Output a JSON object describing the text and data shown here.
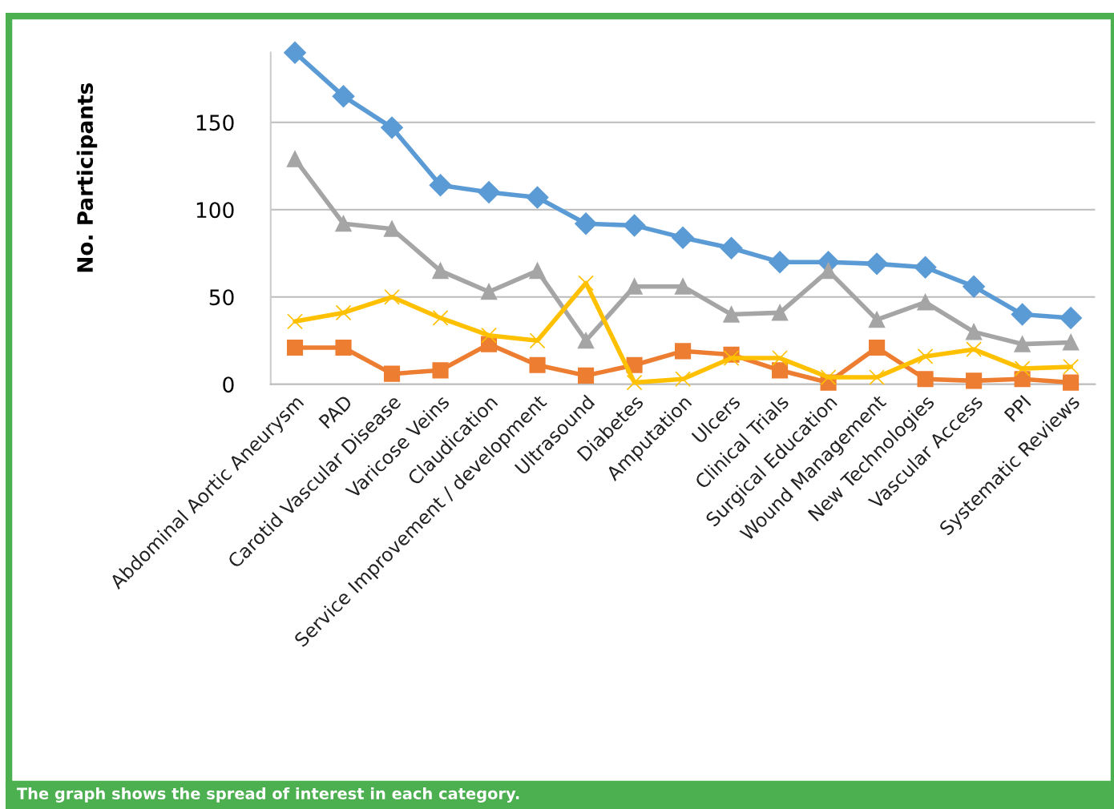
{
  "chart_data": {
    "type": "line",
    "ylabel": "No. Participants",
    "categories": [
      "Abdominal Aortic Aneurysm",
      "PAD",
      "Carotid Vascular Disease",
      "Varicose Veins",
      "Claudication",
      "Service Improvement / development",
      "Ultrasound",
      "Diabetes",
      "Amputation",
      "Ulcers",
      "Clinical Trials",
      "Surgical Education",
      "Wound Management",
      "New Technologies",
      "Vascular Access",
      "PPI",
      "Systematic Reviews"
    ],
    "series": [
      {
        "color": "#5b9bd5",
        "marker": "diamond",
        "values": [
          190,
          165,
          147,
          114,
          110,
          107,
          92,
          91,
          84,
          78,
          70,
          70,
          69,
          67,
          56,
          40,
          38
        ]
      },
      {
        "color": "#a5a5a5",
        "marker": "triangle",
        "values": [
          129,
          92,
          89,
          65,
          53,
          65,
          25,
          56,
          56,
          40,
          41,
          65,
          37,
          47,
          30,
          23,
          24
        ]
      },
      {
        "color": "#ed7d31",
        "marker": "square",
        "values": [
          21,
          21,
          6,
          8,
          23,
          11,
          5,
          11,
          19,
          17,
          8,
          1,
          21,
          3,
          2,
          3,
          1
        ]
      },
      {
        "color": "#ffc000",
        "marker": "cross",
        "values": [
          36,
          41,
          50,
          38,
          28,
          25,
          58,
          1,
          3,
          15,
          15,
          4,
          4,
          16,
          20,
          9,
          10
        ]
      }
    ],
    "ylim": [
      0,
      190
    ],
    "yticks": [
      0,
      50,
      100,
      150
    ],
    "grid": "y",
    "line_style": "solid",
    "annotations": [
      "The graph shows the spread of interest in each category."
    ]
  }
}
